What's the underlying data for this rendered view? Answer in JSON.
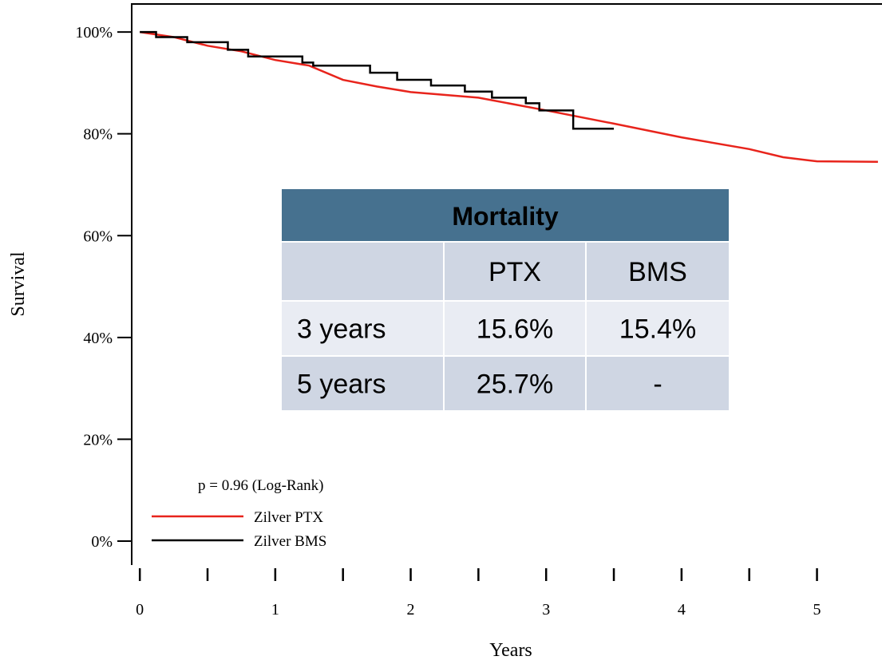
{
  "chart_data": {
    "type": "line",
    "ylabel": "Survival",
    "xlabel": "Years",
    "annotation": "p = 0.96 (Log-Rank)",
    "xlim": [
      -0.06,
      5.48
    ],
    "ylim": [
      -4.7,
      105.5
    ],
    "xticks": [
      0,
      1,
      2,
      3,
      4,
      5
    ],
    "xminor_ticks": [
      0.5,
      1.5,
      2.5,
      3.5,
      4.5
    ],
    "yticks": [
      {
        "value": 0,
        "label": "0%"
      },
      {
        "value": 20,
        "label": "20%"
      },
      {
        "value": 40,
        "label": "40%"
      },
      {
        "value": 60,
        "label": "60%"
      },
      {
        "value": 80,
        "label": "80%"
      },
      {
        "value": 100,
        "label": "100%"
      }
    ],
    "legend": "bottom-left",
    "series": [
      {
        "name": "Zilver PTX",
        "color": "#e8241c",
        "x": [
          0,
          0.25,
          0.5,
          0.75,
          1.0,
          1.25,
          1.5,
          1.75,
          2.0,
          2.5,
          3.0,
          3.5,
          4.0,
          4.5,
          4.75,
          5.0,
          5.45
        ],
        "values": [
          100,
          99,
          97.3,
          96.2,
          94.5,
          93.4,
          90.6,
          89.3,
          88.2,
          87.1,
          84.6,
          82.0,
          79.3,
          77.0,
          75.4,
          74.6,
          74.5
        ]
      },
      {
        "name": "Zilver BMS",
        "color": "#000000",
        "x": [
          0,
          0.12,
          0.12,
          0.35,
          0.35,
          0.65,
          0.65,
          0.8,
          0.8,
          1.2,
          1.2,
          1.28,
          1.28,
          1.7,
          1.7,
          1.9,
          1.9,
          2.15,
          2.15,
          2.4,
          2.4,
          2.6,
          2.6,
          2.85,
          2.85,
          2.95,
          2.95,
          3.2,
          3.2,
          3.5
        ],
        "values": [
          100,
          100,
          99,
          99,
          98,
          98,
          96.5,
          96.5,
          95.2,
          95.2,
          94,
          94,
          93.4,
          93.4,
          92,
          92,
          90.6,
          90.6,
          89.5,
          89.5,
          88.3,
          88.3,
          87.1,
          87.1,
          86,
          86,
          84.6,
          84.6,
          81,
          81
        ]
      }
    ]
  },
  "table": {
    "title": "Mortality",
    "columns": [
      "PTX",
      "BMS"
    ],
    "column_colors": [
      "#ff0000",
      "#000000"
    ],
    "rows": [
      {
        "label": "3 years",
        "values": [
          "15.6%",
          "15.4%"
        ]
      },
      {
        "label": "5 years",
        "values": [
          "25.7%",
          "-"
        ]
      }
    ]
  }
}
